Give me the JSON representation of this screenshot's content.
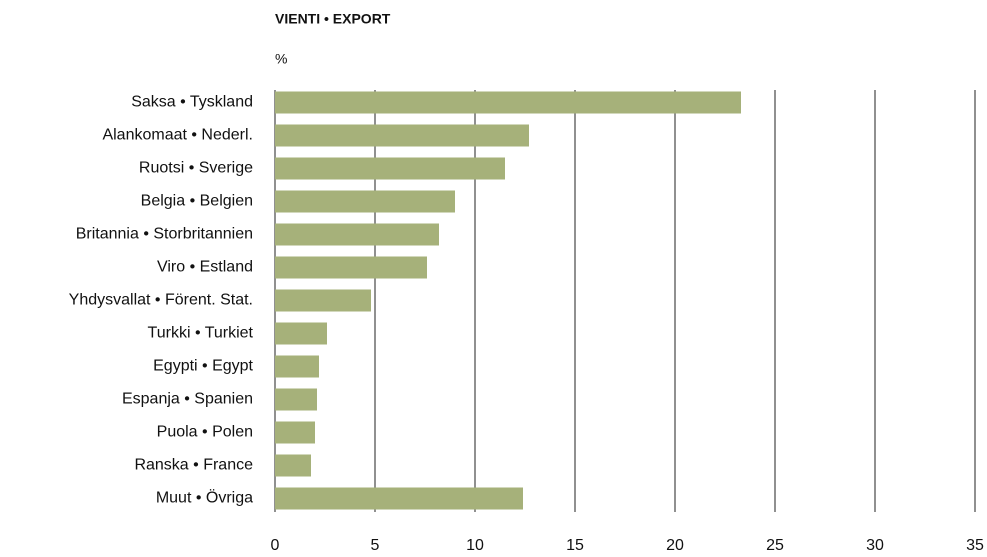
{
  "chart_data": {
    "type": "bar",
    "orientation": "horizontal",
    "title": "VIENTI • EXPORT",
    "x_label": "%",
    "categories": [
      "Saksa • Tyskland",
      "Alankomaat • Nederl.",
      "Ruotsi • Sverige",
      "Belgia • Belgien",
      "Britannia • Storbritannien",
      "Viro • Estland",
      "Yhdysvallat • Förent. Stat.",
      "Turkki • Turkiet",
      "Egypti • Egypt",
      "Espanja • Spanien",
      "Puola • Polen",
      "Ranska • France",
      "Muut • Övriga"
    ],
    "values": [
      23.3,
      12.7,
      11.5,
      9.0,
      8.2,
      7.6,
      4.8,
      2.6,
      2.2,
      2.1,
      2.0,
      1.8,
      12.4
    ],
    "color": "#a6b17a",
    "xlim": [
      0,
      35
    ],
    "xticks": [
      0,
      5,
      10,
      15,
      20,
      25,
      30,
      35
    ],
    "grid": true
  }
}
